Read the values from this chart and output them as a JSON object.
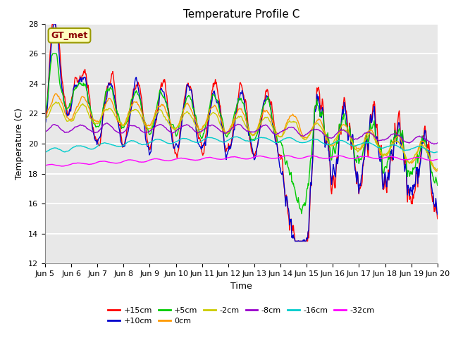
{
  "title": "Temperature Profile C",
  "xlabel": "Time",
  "ylabel": "Temperature (C)",
  "ylim": [
    12,
    28
  ],
  "annotation": "GT_met",
  "series": [
    "+15cm",
    "+10cm",
    "+5cm",
    "0cm",
    "-2cm",
    "-8cm",
    "-16cm",
    "-32cm"
  ],
  "colors": [
    "#ff0000",
    "#0000cc",
    "#00cc00",
    "#ff9900",
    "#cccc00",
    "#9900cc",
    "#00cccc",
    "#ff00ff"
  ],
  "xtick_labels": [
    "Jun 5",
    "Jun 6",
    "Jun 7",
    "Jun 8",
    "Jun 9",
    "Jun 10",
    "Jun 11",
    "Jun 12",
    "Jun 13",
    "Jun 14",
    "Jun 15",
    "Jun 16",
    "Jun 17",
    "Jun 18",
    "Jun 19",
    "Jun 20"
  ],
  "ytick_vals": [
    12,
    14,
    16,
    18,
    20,
    22,
    24,
    26,
    28
  ],
  "bg_color": "#e8e8e8",
  "linewidth": 1.0,
  "title_fontsize": 11,
  "tick_fontsize": 8,
  "label_fontsize": 9
}
